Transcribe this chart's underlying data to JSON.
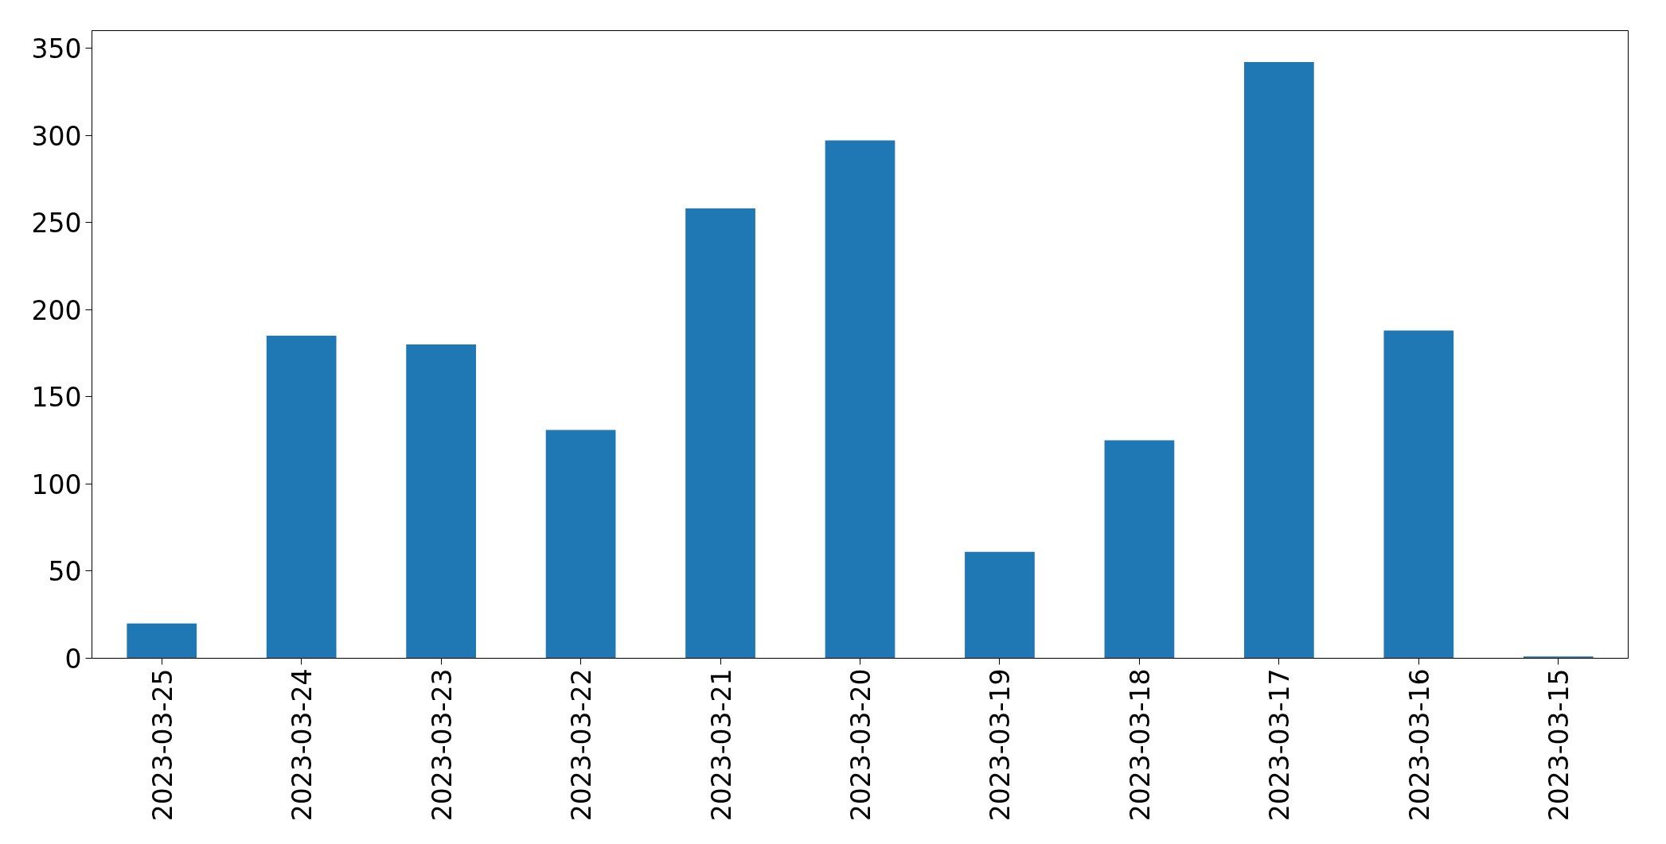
{
  "chart_data": {
    "type": "bar",
    "categories": [
      "2023-03-25",
      "2023-03-24",
      "2023-03-23",
      "2023-03-22",
      "2023-03-21",
      "2023-03-20",
      "2023-03-19",
      "2023-03-18",
      "2023-03-17",
      "2023-03-16",
      "2023-03-15"
    ],
    "values": [
      20,
      185,
      180,
      131,
      258,
      297,
      61,
      125,
      342,
      188,
      1
    ],
    "color": "#1f77b4",
    "ylim": [
      0,
      360
    ],
    "yticks": [
      0,
      50,
      100,
      150,
      200,
      250,
      300,
      350
    ],
    "grid": false
  }
}
